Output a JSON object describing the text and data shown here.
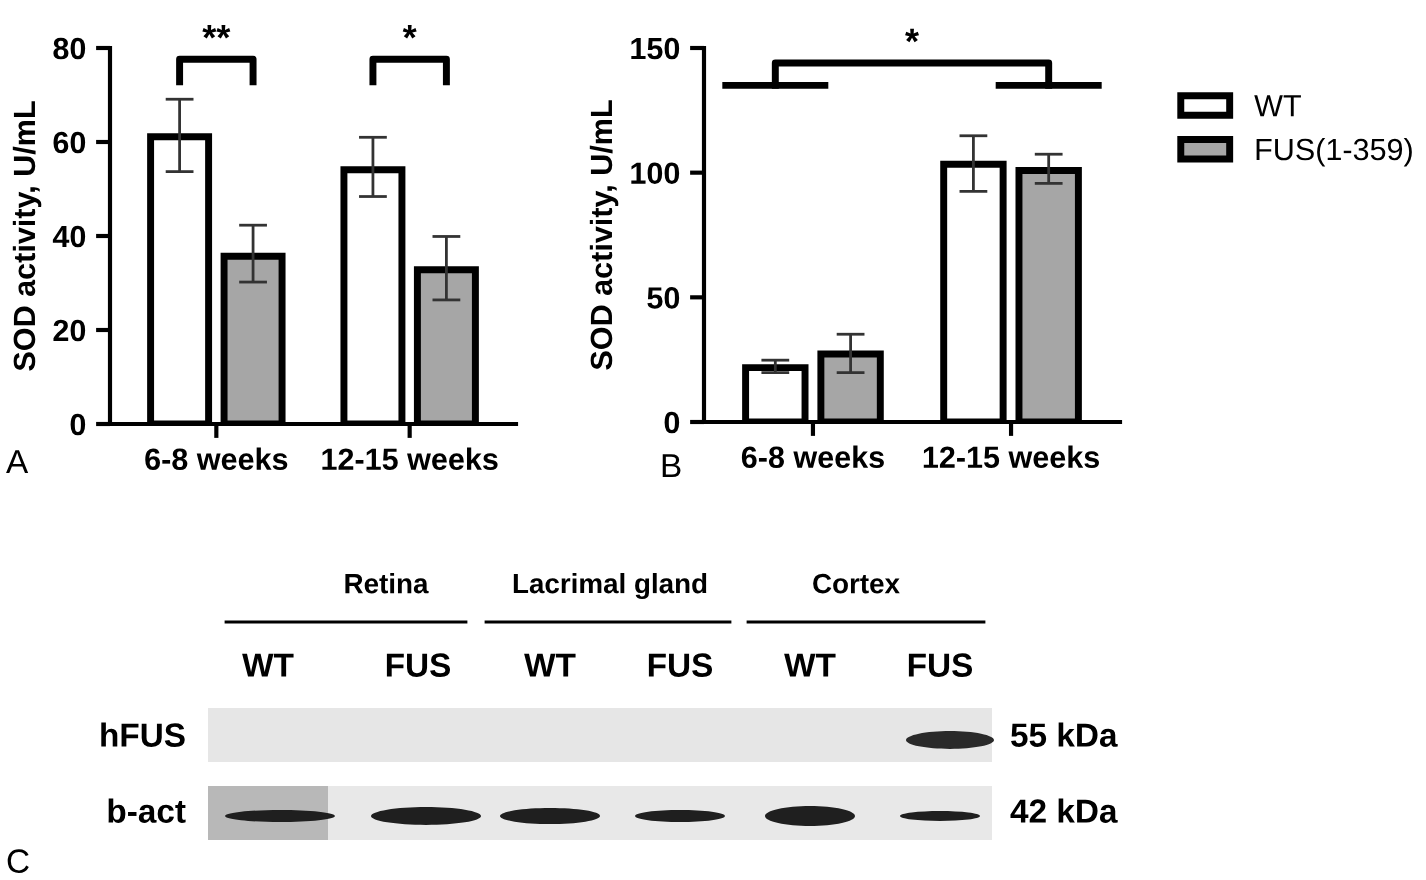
{
  "chart_data": [
    {
      "type": "bar",
      "ylabel": "SOD activity, U/mL",
      "categories": [
        "6-8 weeks",
        "12-15 weeks"
      ],
      "ylim": [
        0,
        80
      ],
      "yticks": [
        0,
        20,
        40,
        60,
        80
      ],
      "grid": false,
      "legend": false,
      "series": [
        {
          "color": "#ffffff",
          "values": [
            61.1,
            54.1
          ],
          "errors": [
            [
              53.7,
              69.1
            ],
            [
              48.4,
              61.0
            ]
          ]
        },
        {
          "color": "#a6a6a6",
          "values": [
            35.7,
            32.8
          ],
          "errors": [
            [
              30.2,
              42.3
            ],
            [
              26.4,
              39.9
            ]
          ]
        }
      ],
      "annotations": [
        "**",
        "*",
        "A"
      ]
    },
    {
      "type": "bar",
      "ylabel": "SOD activity, U/mL",
      "categories": [
        "6-8 weeks",
        "12-15 weeks"
      ],
      "ylim": [
        0,
        150
      ],
      "yticks": [
        0,
        50,
        100,
        150
      ],
      "grid": false,
      "legend": "right",
      "series": [
        {
          "name": "WT",
          "color": "#ffffff",
          "values": [
            21.8,
            103.4
          ],
          "errors": [
            [
              19.8,
              24.8
            ],
            [
              92.5,
              114.8
            ]
          ]
        },
        {
          "name": "FUS(1-359)",
          "color": "#a6a6a6",
          "values": [
            27.3,
            100.9
          ],
          "errors": [
            [
              19.8,
              35.2
            ],
            [
              95.7,
              107.4
            ]
          ]
        }
      ],
      "annotations": [
        "*",
        "B"
      ]
    },
    {
      "type": "other",
      "annotations": [
        "Retina",
        "Lacrimal gland",
        "Cortex",
        "WT",
        "FUS",
        "WT",
        "FUS",
        "WT",
        "FUS",
        "hFUS",
        "b-act",
        "55 kDa",
        "42 kDa",
        "C"
      ]
    }
  ]
}
